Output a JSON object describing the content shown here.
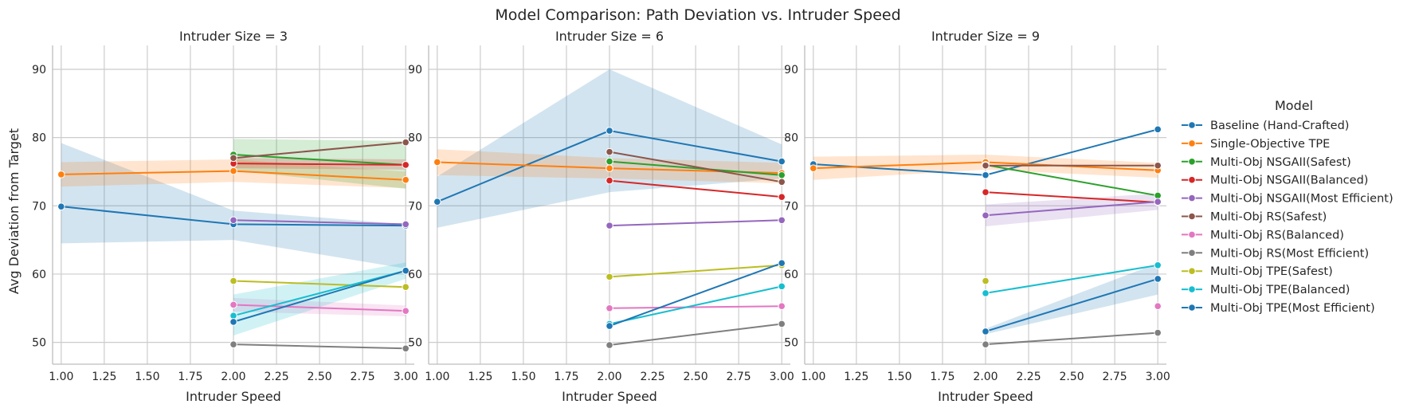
{
  "chart_data": {
    "type": "line",
    "title": "Model Comparison: Path Deviation vs. Intruder Speed",
    "xlabel": "Intruder Speed",
    "ylabel": "Avg Deviation from Target",
    "xlim": [
      0.95,
      3.05
    ],
    "ylim": [
      46.8,
      93.5
    ],
    "xticks": [
      "1.00",
      "1.25",
      "1.50",
      "1.75",
      "2.00",
      "2.25",
      "2.50",
      "2.75",
      "3.00"
    ],
    "yticks": [
      "50",
      "60",
      "70",
      "80",
      "90"
    ],
    "grid": true,
    "legend_title": "Model",
    "legend_position": "right",
    "series": [
      {
        "name": "Baseline (Hand-Crafted)",
        "color": "#1f77b4"
      },
      {
        "name": "Single-Objective TPE",
        "color": "#ff7f0e"
      },
      {
        "name": "Multi-Obj NSGAII(Safest)",
        "color": "#2ca02c"
      },
      {
        "name": "Multi-Obj NSGAII(Balanced)",
        "color": "#d62728"
      },
      {
        "name": "Multi-Obj NSGAII(Most Efficient)",
        "color": "#9467bd"
      },
      {
        "name": "Multi-Obj RS(Safest)",
        "color": "#8c564b"
      },
      {
        "name": "Multi-Obj RS(Balanced)",
        "color": "#e377c2"
      },
      {
        "name": "Multi-Obj RS(Most Efficient)",
        "color": "#7f7f7f"
      },
      {
        "name": "Multi-Obj TPE(Safest)",
        "color": "#bcbd22"
      },
      {
        "name": "Multi-Obj TPE(Balanced)",
        "color": "#17becf"
      },
      {
        "name": "Multi-Obj TPE(Most Efficient)",
        "color": "#1f77b4"
      }
    ],
    "panels": [
      {
        "title": "Intruder Size = 3",
        "series": [
          {
            "x": [
              1,
              2,
              3
            ],
            "y": [
              69.9,
              67.3,
              67.1
            ],
            "band": [
              [
                64.5,
                79.2
              ],
              [
                65.0,
                69.3
              ],
              [
                60.8,
                67.3
              ]
            ]
          },
          {
            "x": [
              1,
              2,
              3
            ],
            "y": [
              74.6,
              75.1,
              73.8
            ],
            "band": [
              [
                72.8,
                76.4
              ],
              [
                73.5,
                76.8
              ],
              [
                72.6,
                75.0
              ]
            ]
          },
          {
            "x": [
              2,
              3
            ],
            "y": [
              77.5,
              76.0
            ],
            "band": [
              [
                75.2,
                79.8
              ],
              [
                72.5,
                79.5
              ]
            ]
          },
          {
            "x": [
              2,
              3
            ],
            "y": [
              76.2,
              76.0
            ],
            "band": [
              [
                75.5,
                77.0
              ],
              [
                75.3,
                76.8
              ]
            ]
          },
          {
            "x": [
              2,
              3
            ],
            "y": [
              67.9,
              67.3
            ],
            "band": null
          },
          {
            "x": [
              2,
              3
            ],
            "y": [
              77.0,
              79.3
            ],
            "band": null
          },
          {
            "x": [
              2,
              3
            ],
            "y": [
              55.5,
              54.6
            ],
            "band": [
              [
                54.5,
                56.5
              ],
              [
                53.8,
                55.4
              ]
            ]
          },
          {
            "x": [
              2,
              3
            ],
            "y": [
              49.7,
              49.1
            ],
            "band": null
          },
          {
            "x": [
              2,
              3
            ],
            "y": [
              59.0,
              58.1
            ],
            "band": null
          },
          {
            "x": [
              2,
              3
            ],
            "y": [
              53.9,
              60.5
            ],
            "band": [
              [
                51.0,
                57.0
              ],
              [
                59.3,
                61.7
              ]
            ]
          },
          {
            "x": [
              2,
              3
            ],
            "y": [
              53.0,
              60.5
            ],
            "band": null
          }
        ]
      },
      {
        "title": "Intruder Size = 6",
        "series": [
          {
            "x": [
              1,
              2,
              3
            ],
            "y": [
              70.6,
              81.0,
              76.5
            ],
            "band": [
              [
                66.8,
                74.3
              ],
              [
                72.0,
                90.0
              ],
              [
                74.0,
                79.0
              ]
            ]
          },
          {
            "x": [
              1,
              2,
              3
            ],
            "y": [
              76.4,
              75.5,
              74.8
            ],
            "band": [
              [
                74.5,
                78.3
              ],
              [
                74.0,
                77.0
              ],
              [
                73.3,
                76.3
              ]
            ]
          },
          {
            "x": [
              2,
              3
            ],
            "y": [
              76.5,
              74.5
            ],
            "band": null
          },
          {
            "x": [
              2,
              3
            ],
            "y": [
              73.7,
              71.3
            ],
            "band": null
          },
          {
            "x": [
              2,
              3
            ],
            "y": [
              67.1,
              67.9
            ],
            "band": null
          },
          {
            "x": [
              2,
              3
            ],
            "y": [
              77.9,
              73.5
            ],
            "band": null
          },
          {
            "x": [
              2,
              3
            ],
            "y": [
              55.0,
              55.3
            ],
            "band": null
          },
          {
            "x": [
              2,
              3
            ],
            "y": [
              49.6,
              52.7
            ],
            "band": null
          },
          {
            "x": [
              2,
              3
            ],
            "y": [
              59.6,
              61.3
            ],
            "band": null
          },
          {
            "x": [
              2,
              3
            ],
            "y": [
              52.7,
              58.2
            ],
            "band": null
          },
          {
            "x": [
              2,
              3
            ],
            "y": [
              52.4,
              61.6
            ],
            "band": null
          }
        ]
      },
      {
        "title": "Intruder Size = 9",
        "series": [
          {
            "x": [
              1,
              2,
              3
            ],
            "y": [
              76.1,
              74.5,
              81.2
            ],
            "band": null
          },
          {
            "x": [
              1,
              2,
              3
            ],
            "y": [
              75.5,
              76.4,
              75.2
            ],
            "band": [
              [
                73.8,
                77.2
              ],
              [
                75.3,
                77.5
              ],
              [
                74.1,
                76.3
              ]
            ]
          },
          {
            "x": [
              2,
              3
            ],
            "y": [
              76.0,
              71.5
            ],
            "band": null
          },
          {
            "x": [
              2,
              3
            ],
            "y": [
              72.0,
              70.5
            ],
            "band": null
          },
          {
            "x": [
              2,
              3
            ],
            "y": [
              68.6,
              70.6
            ],
            "band": [
              [
                67.0,
                70.2
              ],
              [
                69.4,
                71.8
              ]
            ]
          },
          {
            "x": [
              2,
              3
            ],
            "y": [
              75.9,
              75.9
            ],
            "band": null
          },
          {
            "x": [
              3
            ],
            "y": [
              55.3
            ],
            "band": null
          },
          {
            "x": [
              2,
              3
            ],
            "y": [
              49.7,
              51.4
            ],
            "band": null
          },
          {
            "x": [
              2
            ],
            "y": [
              59.0
            ],
            "band": null
          },
          {
            "x": [
              2,
              3
            ],
            "y": [
              57.2,
              61.3
            ],
            "band": null
          },
          {
            "x": [
              2,
              3
            ],
            "y": [
              51.6,
              59.3
            ],
            "band": [
              [
                51.2,
                52.0
              ],
              [
                57.0,
                61.6
              ]
            ]
          }
        ]
      }
    ]
  }
}
